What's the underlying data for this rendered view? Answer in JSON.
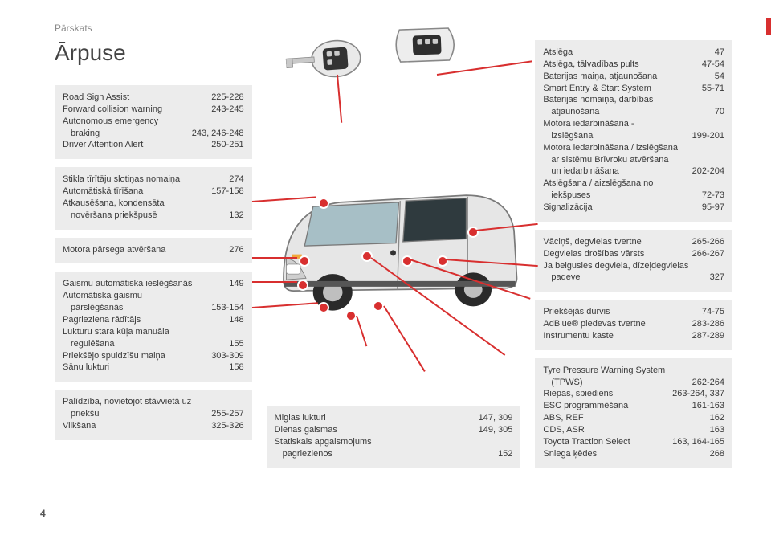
{
  "pageNumber": "4",
  "sectionLabel": "Pārskats",
  "title": "Ārpuse",
  "colors": {
    "accent": "#d82f2f",
    "blockBg": "#ececec",
    "text": "#3a3a3a"
  },
  "left": {
    "b1": [
      {
        "lbl": "Road Sign Assist",
        "pg": "225-228"
      },
      {
        "lbl": "Forward collision warning",
        "pg": "243-245"
      },
      {
        "lbl": "Autonomous emergency",
        "pg": ""
      },
      {
        "lbl": "braking",
        "pg": "243, 246-248",
        "indent": true
      },
      {
        "lbl": "Driver Attention Alert",
        "pg": "250-251"
      }
    ],
    "b2": [
      {
        "lbl": "Stikla tīrītāju slotiņas nomaiņa",
        "pg": "274"
      },
      {
        "lbl": "Automātiskā tīrīšana",
        "pg": "157-158"
      },
      {
        "lbl": "Atkausēšana, kondensāta",
        "pg": ""
      },
      {
        "lbl": "novēršana priekšpusē",
        "pg": "132",
        "indent": true
      }
    ],
    "b3": [
      {
        "lbl": "Motora pārsega atvēršana",
        "pg": "276"
      }
    ],
    "b4": [
      {
        "lbl": "Gaismu automātiska ieslēgšanās",
        "pg": "149"
      },
      {
        "lbl": "Automātiska gaismu",
        "pg": ""
      },
      {
        "lbl": "pārslēgšanās",
        "pg": "153-154",
        "indent": true
      },
      {
        "lbl": "Pagrieziena rādītājs",
        "pg": "148"
      },
      {
        "lbl": "Lukturu stara kūļa manuāla",
        "pg": ""
      },
      {
        "lbl": "regulēšana",
        "pg": "155",
        "indent": true
      },
      {
        "lbl": "Priekšējo spuldzīšu maiņa",
        "pg": "303-309"
      },
      {
        "lbl": "Sānu lukturi",
        "pg": "158"
      }
    ],
    "b5": [
      {
        "lbl": "Palīdzība, novietojot stāvvietā uz",
        "pg": ""
      },
      {
        "lbl": "priekšu",
        "pg": "255-257",
        "indent": true
      },
      {
        "lbl": "Vilkšana",
        "pg": "325-326"
      }
    ]
  },
  "mid": {
    "b1": [
      {
        "lbl": "Miglas lukturi",
        "pg": "147, 309"
      },
      {
        "lbl": "Dienas gaismas",
        "pg": "149, 305"
      },
      {
        "lbl": "Statiskais apgaismojums",
        "pg": ""
      },
      {
        "lbl": "pagriezienos",
        "pg": "152",
        "indent": true
      }
    ]
  },
  "right": {
    "b1": [
      {
        "lbl": "Atslēga",
        "pg": "47"
      },
      {
        "lbl": "Atslēga, tālvadības pults",
        "pg": "47-54"
      },
      {
        "lbl": "Baterijas maiņa, atjaunošana",
        "pg": "54"
      },
      {
        "lbl": "Smart Entry & Start System",
        "pg": "55-71"
      },
      {
        "lbl": "Baterijas nomaiņa, darbības",
        "pg": ""
      },
      {
        "lbl": "atjaunošana",
        "pg": "70",
        "indent": true
      },
      {
        "lbl": "Motora iedarbināšana -",
        "pg": ""
      },
      {
        "lbl": "izslēgšana",
        "pg": "199-201",
        "indent": true
      },
      {
        "lbl": "Motora iedarbināšana / izslēgšana",
        "pg": ""
      },
      {
        "lbl": "ar sistēmu Brīvroku atvēršana",
        "pg": "",
        "indent": true
      },
      {
        "lbl": "un iedarbināšana",
        "pg": "202-204",
        "indent": true
      },
      {
        "lbl": "Atslēgšana / aizslēgšana no",
        "pg": ""
      },
      {
        "lbl": "iekšpuses",
        "pg": "72-73",
        "indent": true
      },
      {
        "lbl": "Signalizācija",
        "pg": "95-97"
      }
    ],
    "b2": [
      {
        "lbl": "Vāciņš, degvielas tvertne",
        "pg": "265-266"
      },
      {
        "lbl": "Degvielas drošības vārsts",
        "pg": "266-267"
      },
      {
        "lbl": "Ja beigusies degviela, dīzeļdegvielas",
        "pg": ""
      },
      {
        "lbl": "padeve",
        "pg": "327",
        "indent": true
      }
    ],
    "b3": [
      {
        "lbl": "Priekšējās durvis",
        "pg": "74-75"
      },
      {
        "lbl": "AdBlue® piedevas tvertne",
        "pg": "283-286"
      },
      {
        "lbl": "Instrumentu kaste",
        "pg": "287-289"
      }
    ],
    "b4": [
      {
        "lbl": "Tyre Pressure Warning System",
        "pg": ""
      },
      {
        "lbl": "(TPWS)",
        "pg": "262-264",
        "indent": true
      },
      {
        "lbl": "Riepas, spiediens",
        "pg": "263-264, 337"
      },
      {
        "lbl": "ESC programmēšana",
        "pg": "161-163"
      },
      {
        "lbl": "ABS, REF",
        "pg": "162"
      },
      {
        "lbl": "CDS, ASR",
        "pg": "163"
      },
      {
        "lbl": "Toyota Traction Select",
        "pg": "163, 164-165"
      },
      {
        "lbl": "Sniega ķēdes",
        "pg": "268"
      }
    ]
  }
}
